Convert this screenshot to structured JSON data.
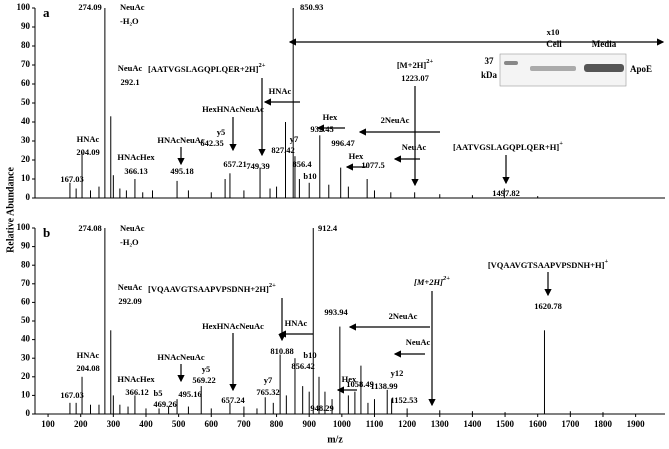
{
  "chart_data": [
    {
      "type": "stem",
      "label": "a",
      "ylabel": "Relative Abundance",
      "xlim": [
        60,
        1990
      ],
      "ylim": [
        0,
        100
      ],
      "yticks": [
        0,
        10,
        20,
        30,
        40,
        50,
        60,
        70,
        80,
        90,
        100
      ],
      "color": "#000000",
      "labeled_peaks": {
        "x": [
          167.03,
          204.09,
          274.09,
          292.1,
          366.13,
          495.18,
          642.35,
          657.21,
          749.39,
          827.42,
          850.93,
          856.4,
          932.45,
          996.47,
          1077.5,
          1223.07,
          1497.82
        ],
        "values": [
          8,
          24,
          100,
          43,
          10,
          9,
          10,
          13,
          16,
          40,
          100,
          22,
          33,
          16,
          10,
          3,
          5
        ]
      },
      "other_peaks": {
        "x": [
          186,
          230,
          256,
          300,
          320,
          340,
          390,
          420,
          530,
          600,
          700,
          780,
          800,
          870,
          900,
          960,
          1020,
          1100,
          1150,
          1300,
          1400,
          1600
        ],
        "values": [
          5,
          4,
          6,
          12,
          5,
          4,
          3,
          4,
          4,
          3,
          4,
          5,
          6,
          10,
          8,
          7,
          6,
          4,
          3,
          2,
          1.5,
          1
        ]
      },
      "annotations": [
        {
          "text": "NeuAc"
        },
        {
          "text": "-H₂O"
        },
        {
          "text": "NeuAc"
        },
        {
          "text": "HNAc"
        },
        {
          "text": "HNAcHex"
        },
        {
          "text": "HNAcNeuAc"
        },
        {
          "text": "HexHNAcNeuAc"
        },
        {
          "text": "y5"
        },
        {
          "text": "[AATVGSLAGQPLQER+2H]",
          "sup": "2+"
        },
        {
          "text": "HNAc"
        },
        {
          "text": "y7"
        },
        {
          "text": "b10"
        },
        {
          "text": "Hex"
        },
        {
          "text": "2NeuAc"
        },
        {
          "text": "Hex"
        },
        {
          "text": "NeuAc"
        },
        {
          "text": "[M+2H]",
          "sup": "2+"
        },
        {
          "text": "[AATVGSLAGQPLQER+H]",
          "sup": "+"
        },
        {
          "text": "x10"
        }
      ],
      "inset": {
        "lanes": [
          "Cell",
          "Media"
        ],
        "marker": "37",
        "unit": "kDa",
        "protein": "ApoE"
      }
    },
    {
      "type": "stem",
      "label": "b",
      "xlabel": "m/z",
      "xlim": [
        60,
        1990
      ],
      "ylim": [
        0,
        100
      ],
      "yticks": [
        0,
        10,
        20,
        30,
        40,
        50,
        60,
        70,
        80,
        90,
        100
      ],
      "xticks": [
        100,
        200,
        300,
        400,
        500,
        600,
        700,
        800,
        900,
        1000,
        1100,
        1200,
        1300,
        1400,
        1500,
        1600,
        1700,
        1800,
        1900
      ],
      "color": "#000000",
      "labeled_peaks": {
        "x": [
          167.03,
          204.08,
          274.08,
          292.09,
          366.12,
          469.26,
          495.16,
          569.22,
          657.24,
          765.32,
          810.88,
          856.42,
          912.4,
          948.29,
          993.94,
          1058.49,
          1138.99,
          1152.53,
          1620.78
        ],
        "values": [
          6,
          20,
          100,
          45,
          10,
          4,
          8,
          15,
          6,
          9,
          32,
          30,
          100,
          12,
          47,
          26,
          13,
          8,
          45
        ]
      },
      "other_peaks": {
        "x": [
          186,
          230,
          256,
          300,
          320,
          345,
          400,
          440,
          530,
          600,
          700,
          740,
          790,
          830,
          880,
          900,
          930,
          970,
          1020,
          1040,
          1080,
          1100,
          1200,
          1300,
          1400,
          1500,
          1700,
          1800
        ],
        "values": [
          6,
          5,
          5,
          10,
          5,
          4,
          3,
          3,
          4,
          3,
          4,
          3,
          6,
          10,
          15,
          12,
          20,
          8,
          10,
          12,
          6,
          8,
          3,
          2,
          1.5,
          1,
          1.5,
          1
        ]
      },
      "annotations": [
        {
          "text": "NeuAc"
        },
        {
          "text": "-H₂O"
        },
        {
          "text": "NeuAc"
        },
        {
          "text": "HNAc"
        },
        {
          "text": "HNAcHex"
        },
        {
          "text": "b5"
        },
        {
          "text": "HNAcNeuAc"
        },
        {
          "text": "y5"
        },
        {
          "text": "HexHNAcNeuAc"
        },
        {
          "text": "y7"
        },
        {
          "text": "[VQAAVGTSAAPVPSDNH+2H]",
          "sup": "2+"
        },
        {
          "text": "HNAc"
        },
        {
          "text": "b10"
        },
        {
          "text": "2NeuAc"
        },
        {
          "text": "Hex"
        },
        {
          "text": "NeuAc"
        },
        {
          "text": "[M+2H]",
          "sup": "2+"
        },
        {
          "text": "y12"
        },
        {
          "text": "[VQAAVGTSAAPVPSDNH+H]",
          "sup": "+"
        }
      ]
    }
  ]
}
